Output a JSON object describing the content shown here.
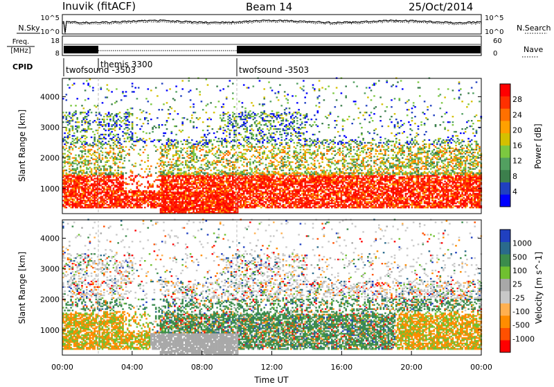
{
  "header": {
    "station": "Inuvik (fitACF)",
    "beam": "Beam 14",
    "date": "25/Oct/2014"
  },
  "strips": {
    "nsky_label": "N.Sky",
    "nsearch_label": "N.Search",
    "freq_label_line1": "Freq.",
    "freq_label_line2": "[MHz]",
    "nave_label": "Nave",
    "cpid_label": "CPID",
    "noise_left_ticks": [
      "10^5",
      "10^0"
    ],
    "noise_right_ticks": [
      "10^5",
      "10^0"
    ],
    "freq_left_ticks": [
      "18",
      "8"
    ],
    "freq_right_ticks": [
      "60",
      "0"
    ],
    "cpid_segments": [
      {
        "label": "twofsound -3503",
        "start": 0,
        "end": 2.0
      },
      {
        "label": "themis 3300",
        "start": 2.0,
        "end": 10.0
      },
      {
        "label": "twofsound -3503",
        "start": 10.0,
        "end": 24.0
      }
    ]
  },
  "colors": {
    "power_scale": [
      "#0000ff",
      "#2040c0",
      "#3c7f4c",
      "#52a060",
      "#7cc840",
      "#d4c000",
      "#ffa000",
      "#ff7000",
      "#ff3000",
      "#ff0000"
    ],
    "velocity_scale": [
      "#ff0000",
      "#ff5000",
      "#ff8c00",
      "#ffb050",
      "#c8c8c8",
      "#a8a8a8",
      "#70c030",
      "#3c8c4c",
      "#2a6a8c",
      "#2040c0"
    ]
  },
  "chart_data": [
    {
      "type": "heatmap",
      "name": "power-panel",
      "xlabel": "",
      "ylabel": "Slant Range [km]",
      "xlim": [
        0,
        24
      ],
      "ylim": [
        180,
        4600
      ],
      "yticks": [
        "1000",
        "2000",
        "3000",
        "4000"
      ],
      "colorbar": {
        "label": "Power [dB]",
        "ticks": [
          "4",
          "8",
          "12",
          "16",
          "20",
          "24",
          "28"
        ]
      },
      "dominant_band_km": [
        500,
        1500
      ],
      "dominant_value": "~28 dB"
    },
    {
      "type": "heatmap",
      "name": "velocity-panel",
      "xlabel": "Time UT",
      "ylabel": "Slant Range [km]",
      "xlim": [
        0,
        24
      ],
      "ylim": [
        180,
        4600
      ],
      "xticks": [
        "00:00",
        "04:00",
        "08:00",
        "12:00",
        "16:00",
        "20:00",
        "00:00"
      ],
      "yticks": [
        "1000",
        "2000",
        "3000",
        "4000"
      ],
      "colorbar": {
        "label": "Velocity [m s^-1]",
        "ticks": [
          "1000",
          "500",
          "100",
          "25",
          "-25",
          "-100",
          "-500",
          "-1000"
        ]
      }
    }
  ]
}
